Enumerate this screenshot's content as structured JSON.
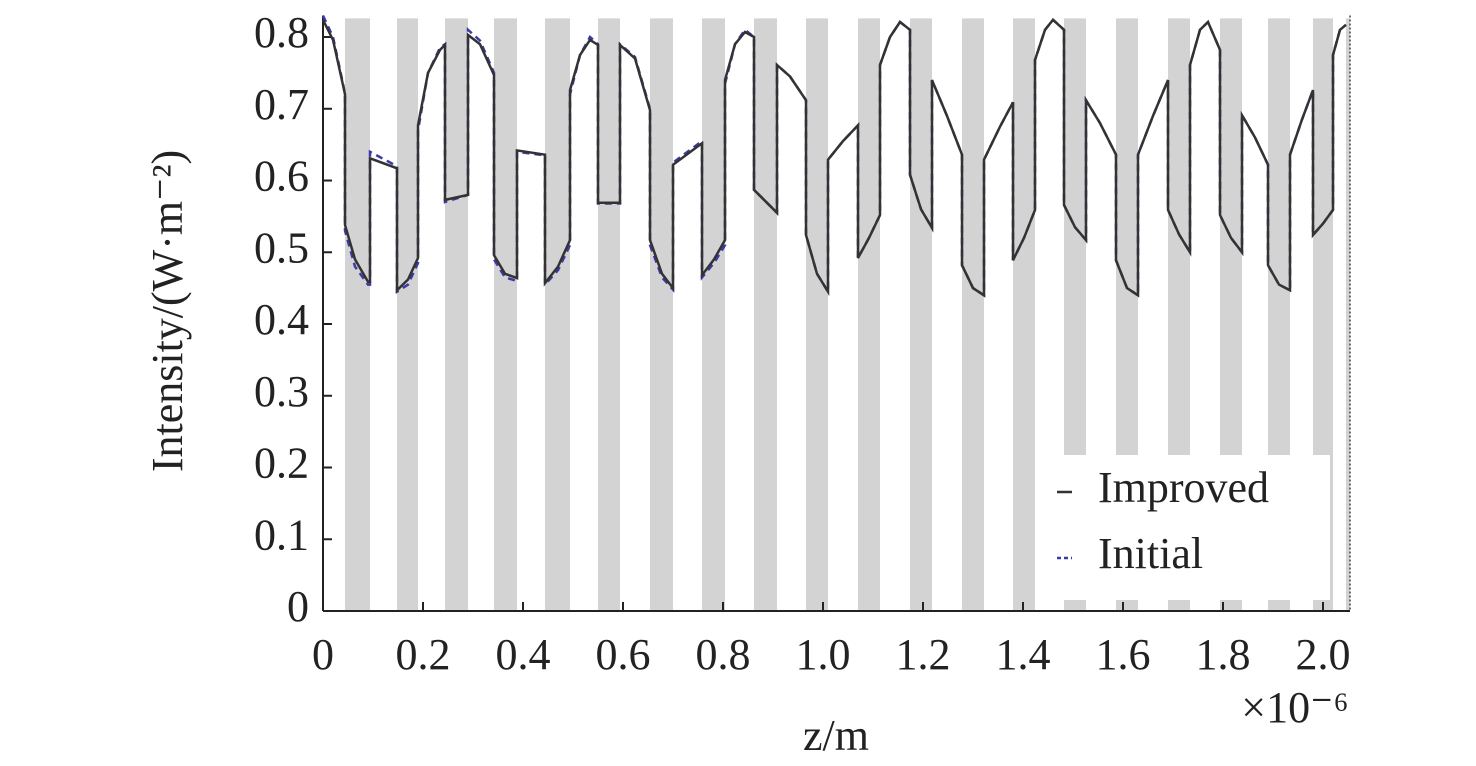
{
  "chart_data": {
    "type": "line",
    "x_label": "z/m",
    "y_label": "Intensity/(W·m⁻²)",
    "x_multiplier": "×10⁻⁶",
    "x": [
      0,
      0.02,
      0.04,
      0.044,
      0.044,
      0.064,
      0.09,
      0.094,
      0.094,
      0.148,
      0.148,
      0.17,
      0.19,
      0.19,
      0.21,
      0.234,
      0.244,
      0.244,
      0.29,
      0.29,
      0.314,
      0.342,
      0.342,
      0.364,
      0.388,
      0.388,
      0.444,
      0.444,
      0.47,
      0.494,
      0.494,
      0.514,
      0.534,
      0.55,
      0.55,
      0.594,
      0.594,
      0.624,
      0.654,
      0.654,
      0.678,
      0.7,
      0.7,
      0.758,
      0.758,
      0.782,
      0.804,
      0.804,
      0.824,
      0.844,
      0.862,
      0.862,
      0.908,
      0.908,
      0.934,
      0.966,
      0.966,
      0.988,
      1.01,
      1.01,
      1.04,
      1.07,
      1.07,
      1.092,
      1.114,
      1.114,
      1.134,
      1.154,
      1.174,
      1.174,
      1.196,
      1.218,
      1.218,
      1.248,
      1.278,
      1.278,
      1.3,
      1.322,
      1.322,
      1.354,
      1.38,
      1.38,
      1.402,
      1.424,
      1.424,
      1.444,
      1.46,
      1.482,
      1.482,
      1.504,
      1.526,
      1.526,
      1.554,
      1.586,
      1.586,
      1.608,
      1.63,
      1.63,
      1.66,
      1.69,
      1.69,
      1.712,
      1.734,
      1.734,
      1.754,
      1.77,
      1.794,
      1.794,
      1.816,
      1.838,
      1.838,
      1.864,
      1.89,
      1.89,
      1.912,
      1.934,
      1.934,
      1.958,
      1.98,
      1.98,
      2.0,
      2.02,
      2.02,
      2.034,
      2.046
    ],
    "series": [
      {
        "name": "Improved",
        "color": "#333333",
        "line_style": "solid",
        "values": [
          0.824,
          0.796,
          0.733,
          0.72,
          0.538,
          0.49,
          0.459,
          0.459,
          0.631,
          0.617,
          0.447,
          0.462,
          0.492,
          0.677,
          0.75,
          0.782,
          0.789,
          0.573,
          0.58,
          0.803,
          0.79,
          0.747,
          0.496,
          0.47,
          0.464,
          0.642,
          0.636,
          0.457,
          0.48,
          0.517,
          0.726,
          0.775,
          0.796,
          0.789,
          0.569,
          0.569,
          0.789,
          0.77,
          0.698,
          0.517,
          0.47,
          0.45,
          0.622,
          0.652,
          0.468,
          0.49,
          0.517,
          0.74,
          0.79,
          0.807,
          0.8,
          0.587,
          0.555,
          0.761,
          0.745,
          0.712,
          0.524,
          0.47,
          0.445,
          0.629,
          0.655,
          0.677,
          0.492,
          0.52,
          0.552,
          0.761,
          0.8,
          0.821,
          0.81,
          0.608,
          0.56,
          0.534,
          0.74,
          0.69,
          0.636,
          0.482,
          0.45,
          0.44,
          0.629,
          0.675,
          0.709,
          0.489,
          0.52,
          0.559,
          0.768,
          0.81,
          0.824,
          0.81,
          0.566,
          0.535,
          0.517,
          0.712,
          0.68,
          0.636,
          0.489,
          0.45,
          0.44,
          0.636,
          0.69,
          0.74,
          0.559,
          0.525,
          0.5,
          0.761,
          0.81,
          0.821,
          0.782,
          0.552,
          0.52,
          0.5,
          0.691,
          0.66,
          0.622,
          0.482,
          0.455,
          0.447,
          0.636,
          0.685,
          0.726,
          0.524,
          0.54,
          0.559,
          0.775,
          0.81,
          0.817
        ]
      },
      {
        "name": "Initial",
        "color": "#3a3aa8",
        "line_style": "dashed",
        "values": [
          0.83,
          0.8,
          0.735,
          0.72,
          0.53,
          0.48,
          0.455,
          0.455,
          0.64,
          0.62,
          0.445,
          0.455,
          0.485,
          0.67,
          0.75,
          0.785,
          0.79,
          0.57,
          0.58,
          0.81,
          0.795,
          0.75,
          0.49,
          0.465,
          0.46,
          0.64,
          0.635,
          0.455,
          0.475,
          0.51,
          0.72,
          0.775,
          0.8,
          0.79,
          0.568,
          0.568,
          0.79,
          0.772,
          0.7,
          0.51,
          0.465,
          0.448,
          0.625,
          0.655,
          0.465,
          0.485,
          0.51,
          0.735,
          0.79,
          0.81,
          0.8,
          0.587,
          0.555,
          0.761,
          0.745,
          0.712,
          0.524,
          0.47,
          0.445,
          0.629,
          0.655,
          0.677,
          0.492,
          0.52,
          0.552,
          0.761,
          0.8,
          0.821,
          0.81,
          0.608,
          0.56,
          0.534,
          0.74,
          0.69,
          0.636,
          0.482,
          0.45,
          0.44,
          0.629,
          0.675,
          0.709,
          0.489,
          0.52,
          0.559,
          0.768,
          0.81,
          0.824,
          0.81,
          0.566,
          0.535,
          0.517,
          0.712,
          0.68,
          0.636,
          0.489,
          0.45,
          0.44,
          0.636,
          0.69,
          0.74,
          0.559,
          0.525,
          0.5,
          0.761,
          0.81,
          0.821,
          0.782,
          0.552,
          0.52,
          0.5,
          0.691,
          0.66,
          0.622,
          0.482,
          0.455,
          0.447,
          0.636,
          0.685,
          0.726,
          0.524,
          0.54,
          0.559,
          0.775,
          0.81,
          0.817
        ]
      }
    ],
    "bands": [
      [
        0.044,
        0.094
      ],
      [
        0.148,
        0.19
      ],
      [
        0.244,
        0.29
      ],
      [
        0.342,
        0.388
      ],
      [
        0.444,
        0.494
      ],
      [
        0.55,
        0.594
      ],
      [
        0.654,
        0.7
      ],
      [
        0.758,
        0.804
      ],
      [
        0.862,
        0.908
      ],
      [
        0.966,
        1.01
      ],
      [
        1.07,
        1.114
      ],
      [
        1.174,
        1.218
      ],
      [
        1.278,
        1.322
      ],
      [
        1.38,
        1.424
      ],
      [
        1.482,
        1.526
      ],
      [
        1.586,
        1.63
      ],
      [
        1.69,
        1.734
      ],
      [
        1.794,
        1.838
      ],
      [
        1.89,
        1.934
      ],
      [
        1.98,
        2.02
      ],
      [
        2.046,
        2.054
      ]
    ],
    "band_top": 0.826,
    "band_color": "#d3d3d3",
    "xlim": [
      0,
      2.054
    ],
    "ylim": [
      0,
      0.83
    ],
    "xticks": [
      0,
      0.2,
      0.4,
      0.6,
      0.8,
      {
        "value": 1.0,
        "label": "1.0"
      },
      1.2,
      1.4,
      1.6,
      1.8,
      {
        "value": 2.0,
        "label": "2.0"
      }
    ],
    "yticks": [
      0,
      0.1,
      0.2,
      0.3,
      0.4,
      0.5,
      0.6,
      0.7,
      0.8
    ],
    "legend": "lower right"
  }
}
